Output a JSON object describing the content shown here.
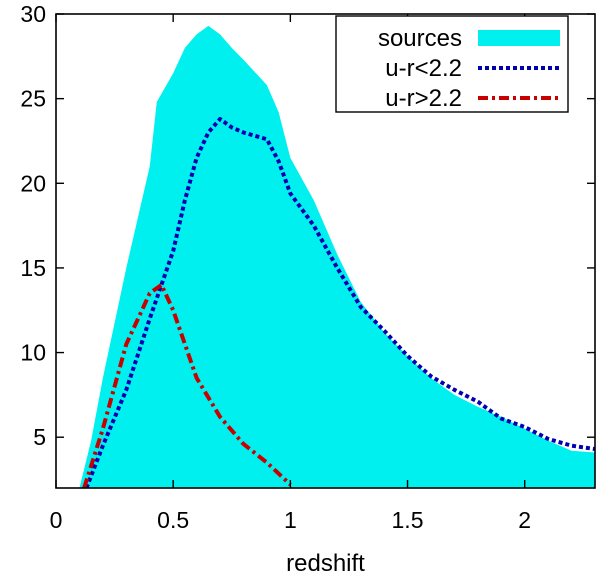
{
  "chart_data": {
    "type": "area",
    "title": "",
    "xlabel": "redshift",
    "ylabel": "",
    "xlim": [
      0,
      2.3
    ],
    "ylim": [
      2,
      30
    ],
    "x_ticks": [
      "0",
      "0.5",
      "1",
      "1.5",
      "2"
    ],
    "x_tick_values": [
      0,
      0.5,
      1,
      1.5,
      2
    ],
    "y_ticks": [
      "30",
      "25",
      "20",
      "15",
      "10",
      "5"
    ],
    "y_tick_values": [
      30,
      25,
      20,
      15,
      10,
      5
    ],
    "grid": false,
    "legend_position": "top-right",
    "series": [
      {
        "name": "sources",
        "style": "filled",
        "color": "#00f0f0",
        "x": [
          0.1,
          0.15,
          0.2,
          0.3,
          0.4,
          0.43,
          0.5,
          0.55,
          0.6,
          0.65,
          0.7,
          0.75,
          0.8,
          0.9,
          0.95,
          1.0,
          1.1,
          1.2,
          1.3,
          1.4,
          1.5,
          1.6,
          1.7,
          1.8,
          1.9,
          2.0,
          2.1,
          2.2,
          2.3
        ],
        "y": [
          2.0,
          4.8,
          8.5,
          15.0,
          21.0,
          24.8,
          26.5,
          28.0,
          28.8,
          29.3,
          28.8,
          28.0,
          27.3,
          25.8,
          24.2,
          21.5,
          19.0,
          15.8,
          13.0,
          11.2,
          9.8,
          8.5,
          7.5,
          6.8,
          6.2,
          5.5,
          4.8,
          4.2,
          4.1
        ]
      },
      {
        "name": "u-r<2.2",
        "style": "dotted",
        "color": "#0000b0",
        "x": [
          0.13,
          0.2,
          0.3,
          0.4,
          0.5,
          0.55,
          0.6,
          0.65,
          0.7,
          0.75,
          0.8,
          0.9,
          0.95,
          1.0,
          1.1,
          1.2,
          1.3,
          1.4,
          1.5,
          1.6,
          1.7,
          1.8,
          1.9,
          2.0,
          2.1,
          2.2,
          2.3
        ],
        "y": [
          2.0,
          4.5,
          7.8,
          12.0,
          16.0,
          19.0,
          21.5,
          23.0,
          23.8,
          23.3,
          23.0,
          22.6,
          21.3,
          19.4,
          17.5,
          15.0,
          12.7,
          11.3,
          9.8,
          8.6,
          7.8,
          7.1,
          6.1,
          5.6,
          4.9,
          4.5,
          4.3
        ]
      },
      {
        "name": "u-r>2.2",
        "style": "dash-dot",
        "color": "#c80000",
        "x": [
          0.12,
          0.2,
          0.3,
          0.4,
          0.45,
          0.5,
          0.6,
          0.7,
          0.8,
          0.9,
          1.0
        ],
        "y": [
          2.0,
          5.5,
          10.5,
          13.5,
          14.0,
          12.5,
          8.5,
          6.2,
          4.6,
          3.5,
          2.2
        ]
      }
    ]
  }
}
